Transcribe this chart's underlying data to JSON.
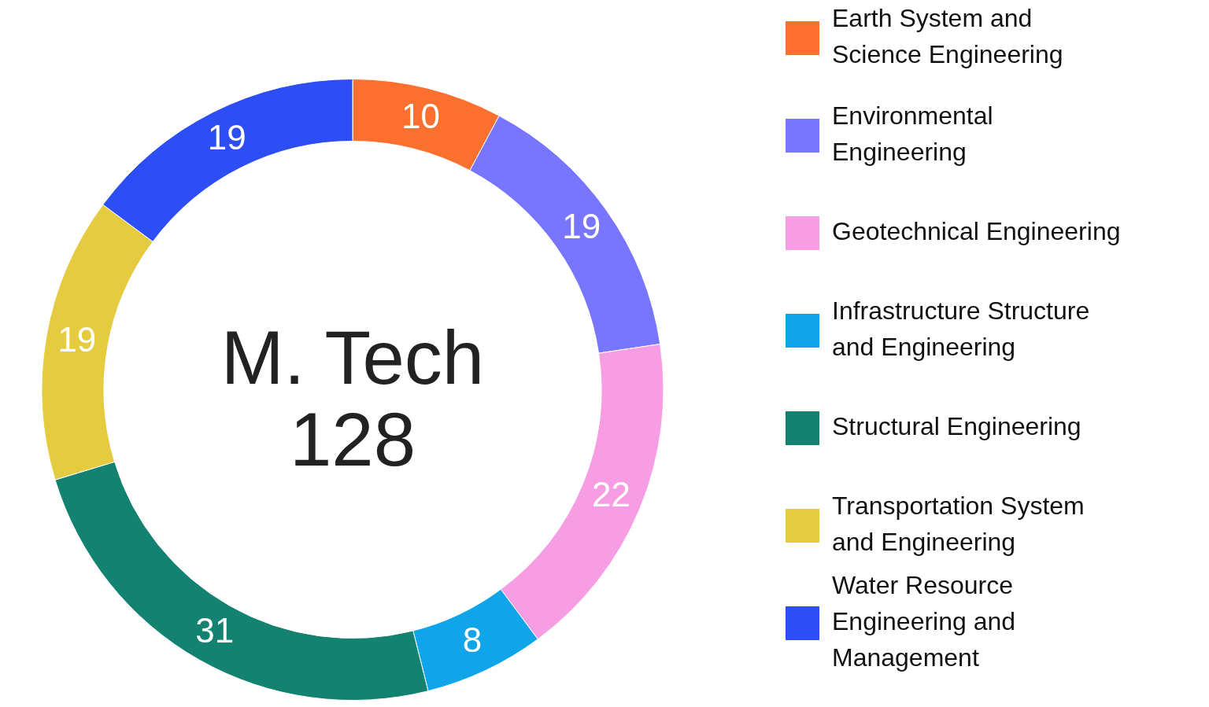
{
  "chart_data": {
    "type": "donut",
    "title": "M. Tech",
    "subtitle": "128",
    "categories": [
      "Earth System and Science Engineering",
      "Environmental Engineering",
      "Geotechnical Engineering",
      "Infrastructure Structure and Engineering",
      "Structural Engineering",
      "Transportation System and Engineering",
      "Water Resource Engineering and Management"
    ],
    "values": [
      10,
      19,
      22,
      8,
      31,
      19,
      19
    ],
    "colors": [
      "#fb6f2f",
      "#7876fe",
      "#f79de4",
      "#10a5e9",
      "#138270",
      "#e4cb40",
      "#2d4ef5"
    ],
    "data_labels": true,
    "legend": "right"
  }
}
